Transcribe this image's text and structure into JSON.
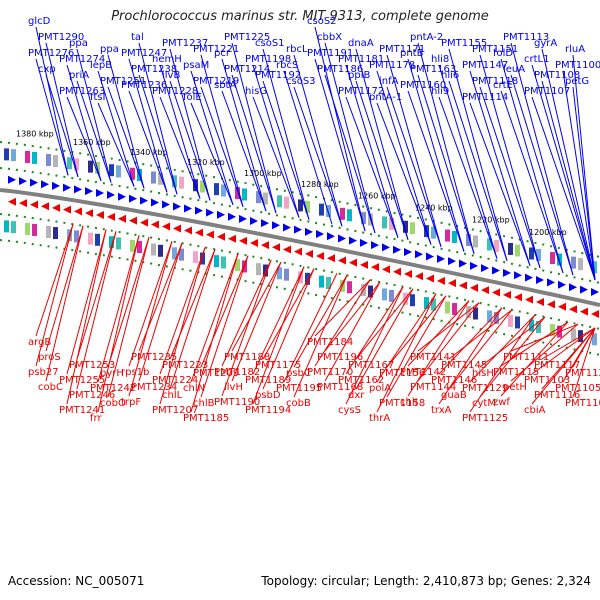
{
  "title": "Prochlorococcus marinus str. MIT 9313, complete genome",
  "footer": {
    "accession": "Accession: NC_005071",
    "summary": "Topology: circular; Length: 2,410,873 bp; Genes: 2,324"
  },
  "colors": {
    "forward": "#0000ee",
    "reverse": "#ee0000",
    "backbone": "#808080",
    "tick": "#1a8a1a"
  },
  "kbp_ticks": [
    "1380 kbp",
    "1360 kbp",
    "1340 kbp",
    "1320 kbp",
    "1300 kbp",
    "1280 kbp",
    "1260 kbp",
    "1240 kbp",
    "1220 kbp",
    "1200 kbp"
  ],
  "forward_genes": [
    "glcD",
    "PMT1290",
    "PMT1276",
    "cxp",
    "ppa",
    "PMT1274",
    "priA",
    "PMT1263",
    "ppa",
    "lepB",
    "PMT1251",
    "ftsI",
    "tal",
    "PMT1247",
    "PMT1238",
    "PMT1236",
    "PMT1237",
    "hemH",
    "ilvB",
    "PMT1228",
    "PMT1221",
    "psaM",
    "PMT1219",
    "folE",
    "PMT1225",
    "pcr",
    "PMT1214",
    "sbtA",
    "csoS1",
    "PMT1198",
    "PMT1192",
    "hisG",
    "rbcL",
    "rbcS",
    "csoS3",
    "csoS2",
    "cbbX",
    "PMT1191",
    "PMT1186",
    "dnaA",
    "PMT1181",
    "ppiB",
    "PMT1172",
    "PMT1171",
    "PMT1178",
    "infA",
    "pntA-1",
    "pntA-2",
    "pntB",
    "PMT1163",
    "PMT1160",
    "PMT1155",
    "hli8",
    "hli6",
    "hli9",
    "PMT1151",
    "PMT1147",
    "PMT1118",
    "PMT1114",
    "PMT1113",
    "folD",
    "leuA",
    "crtE",
    "gyrA",
    "crtL1",
    "PMT1108",
    "PMT1107",
    "rluA",
    "PMT1100",
    "petG"
  ],
  "reverse_genes": [
    "argB",
    "proS",
    "psb27",
    "cobC",
    "PMT1253",
    "PMT1255",
    "PMT1246",
    "PMT1241",
    "pyrH",
    "PMT1242",
    "cobO",
    "frr",
    "PMT1235",
    "rps1b",
    "PMT1234",
    "trpF",
    "PMT1223",
    "PMT1224",
    "chlL",
    "PMT1207",
    "PMT1209",
    "chlN",
    "chlB",
    "PMT1185",
    "PMT1188",
    "PMT1182",
    "ilvH",
    "PMT1190",
    "PMT1175",
    "PMT1189",
    "psbD",
    "PMT1194",
    "psbC",
    "PMT1195",
    "cobB",
    "PMT1184",
    "PMT1196",
    "PMT1170",
    "PMT1168",
    "PMT1167",
    "PMT1162",
    "dxr",
    "cysS",
    "PMT1156",
    "polA",
    "PMT1158",
    "thrA",
    "PMT1141",
    "PMT1142",
    "PMT1144",
    "chlI",
    "PMT1145",
    "PMT1146",
    "guaB",
    "trxA",
    "hisH",
    "PMT1129",
    "cytM",
    "PMT1125",
    "PMT1111",
    "PMT1115",
    "petH",
    "zwf",
    "PMT1117",
    "PMT1103",
    "PMT1116",
    "cbiA",
    "PMT1122",
    "PMT1105",
    "PMT1106"
  ]
}
